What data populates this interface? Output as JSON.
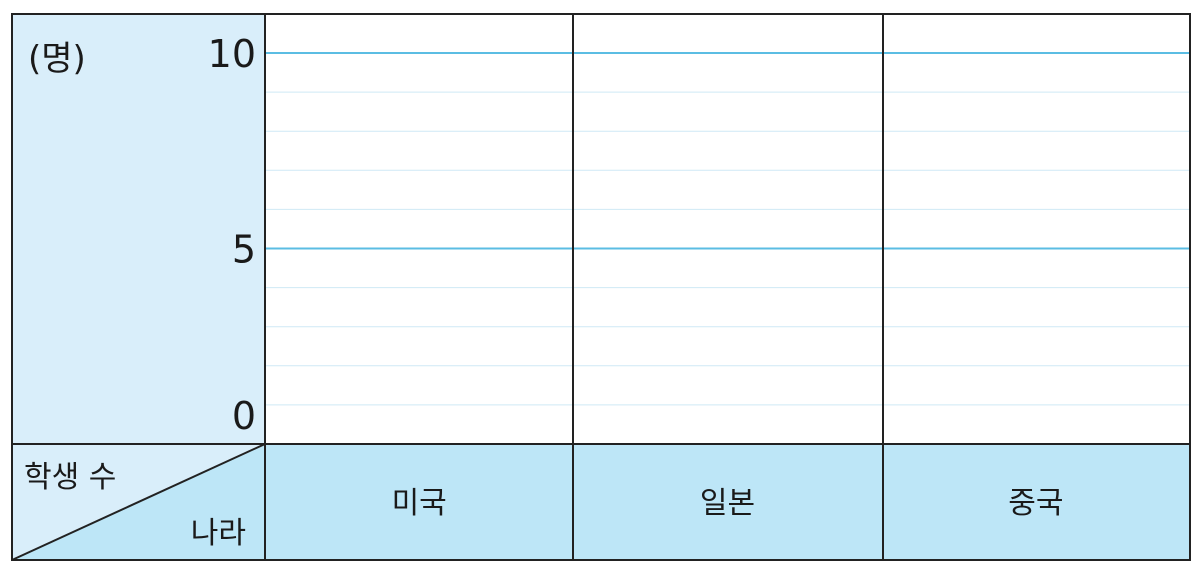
{
  "chart_data": {
    "type": "bar",
    "title": "",
    "unit_label": "(명)",
    "corner_header": {
      "row_label": "학생 수",
      "col_label": "나라"
    },
    "categories": [
      "미국",
      "일본",
      "중국"
    ],
    "values": [
      null,
      null,
      null
    ],
    "ylim": [
      0,
      10
    ],
    "y_ticks": [
      "0",
      "5",
      "10"
    ],
    "minor_step": 1,
    "grid": true
  },
  "colors": {
    "axis_panel": "#d9eefa",
    "category_band": "#bde6f7",
    "major_grid": "#5bbde3",
    "minor_grid": "#cfe9f5",
    "border": "#222222"
  }
}
